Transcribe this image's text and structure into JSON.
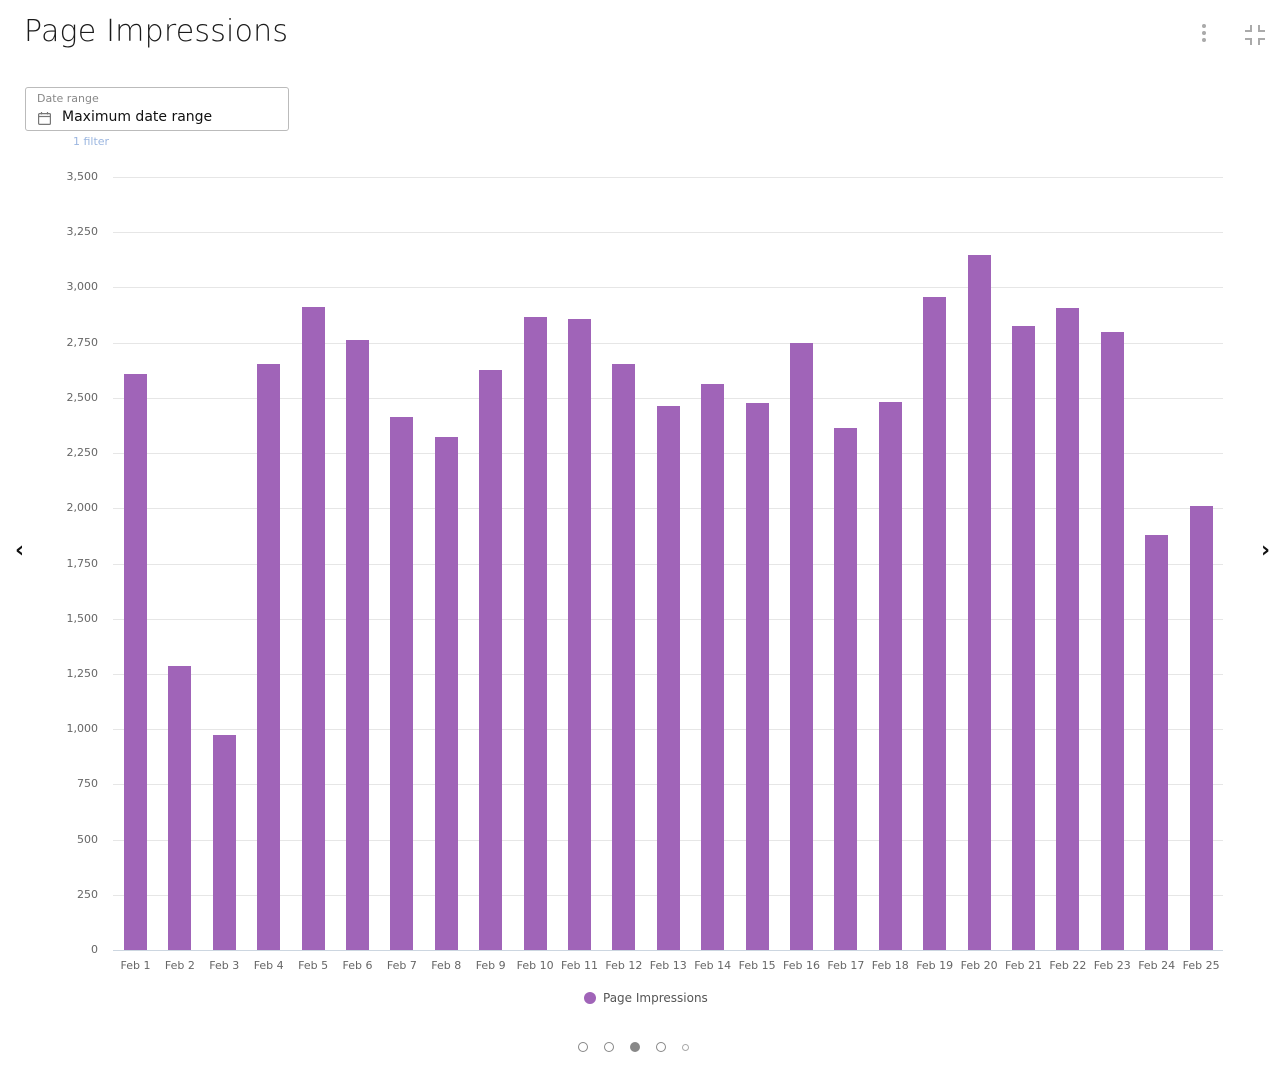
{
  "header": {
    "title": "Page Impressions",
    "menu_icon": "more-vertical-icon",
    "collapse_icon": "collapse-icon"
  },
  "filter": {
    "label": "Date range",
    "value": "Maximum date range",
    "icon": "calendar-icon",
    "count_text": "1 filter"
  },
  "navigation": {
    "prev": "‹",
    "next": "›",
    "pages": 5,
    "active_page": 3
  },
  "colors": {
    "bar": "#a064b8",
    "gridline": "#e6e6e6",
    "filter_link": "#9bb6e0"
  },
  "chart_data": {
    "type": "bar",
    "title": "Page Impressions",
    "xlabel": "",
    "ylabel": "",
    "ylim": [
      0,
      3500
    ],
    "yticks": [
      "0",
      "250",
      "500",
      "750",
      "1,000",
      "1,250",
      "1,500",
      "1,750",
      "2,000",
      "2,250",
      "2,500",
      "2,750",
      "3,000",
      "3,250",
      "3,500"
    ],
    "grid": true,
    "legend_position": "bottom",
    "categories": [
      "Feb 1",
      "Feb 2",
      "Feb 3",
      "Feb 4",
      "Feb 5",
      "Feb 6",
      "Feb 7",
      "Feb 8",
      "Feb 9",
      "Feb 10",
      "Feb 11",
      "Feb 12",
      "Feb 13",
      "Feb 14",
      "Feb 15",
      "Feb 16",
      "Feb 17",
      "Feb 18",
      "Feb 19",
      "Feb 20",
      "Feb 21",
      "Feb 22",
      "Feb 23",
      "Feb 24",
      "Feb 25"
    ],
    "series": [
      {
        "name": "Page Impressions",
        "values": [
          2610,
          1285,
          975,
          2655,
          2910,
          2760,
          2415,
          2325,
          2625,
          2865,
          2855,
          2655,
          2465,
          2565,
          2475,
          2750,
          2365,
          2480,
          2955,
          3145,
          2825,
          2905,
          2800,
          1880,
          2010
        ]
      }
    ]
  }
}
